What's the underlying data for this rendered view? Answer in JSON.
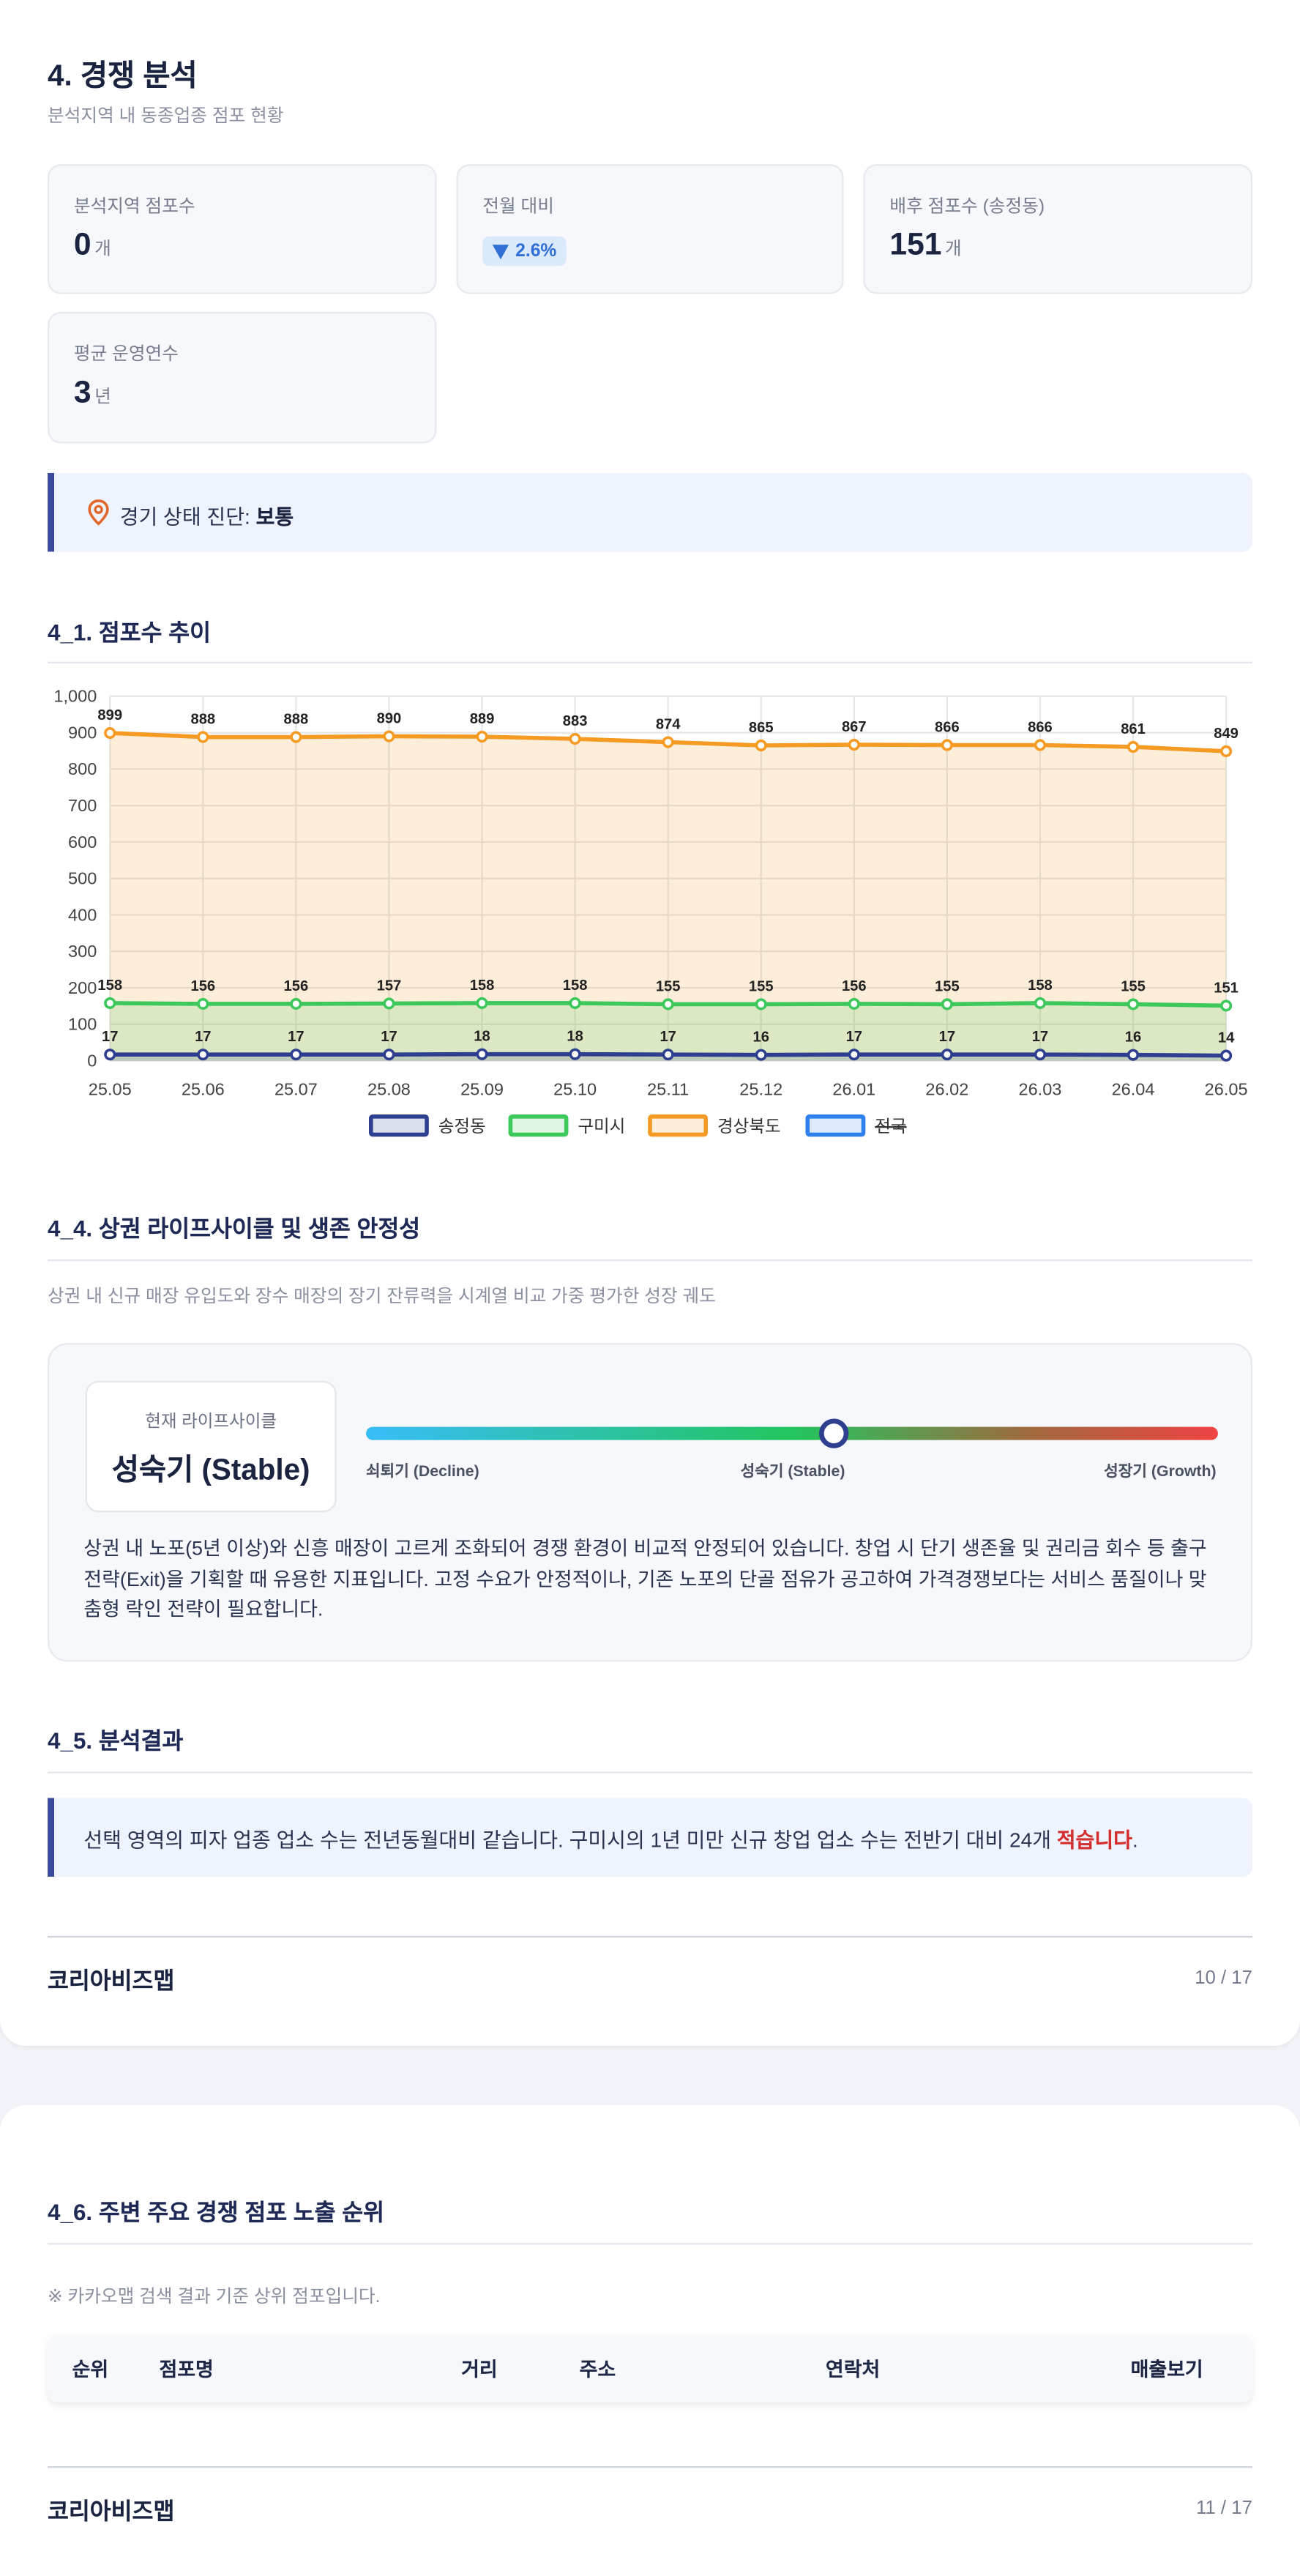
{
  "header": {
    "title": "4. 경쟁 분석",
    "subtitle": "분석지역 내 동종업종 점포 현황"
  },
  "stats": [
    {
      "label": "분석지역 점포수",
      "value": "0",
      "unit": "개"
    },
    {
      "label": "전월 대비",
      "value": "2.6%"
    },
    {
      "label": "배후 점포수 (송정동)",
      "value": "151",
      "unit": "개"
    },
    {
      "label": "평균 운영연수",
      "value": "3",
      "unit": "년"
    }
  ],
  "diagnosis": {
    "label": "경기 상태 진단:",
    "value": "보통"
  },
  "trend_section": {
    "title": "4_1. 점포수 추이"
  },
  "chart_data": {
    "type": "line",
    "categories": [
      "25.05",
      "25.06",
      "25.07",
      "25.08",
      "25.09",
      "25.10",
      "25.11",
      "25.12",
      "26.01",
      "26.02",
      "26.03",
      "26.04",
      "26.05"
    ],
    "series": [
      {
        "name": "송정동",
        "color": "#2e3f8f",
        "values": [
          17,
          17,
          17,
          17,
          18,
          18,
          17,
          16,
          17,
          17,
          17,
          16,
          14
        ]
      },
      {
        "name": "구미시",
        "color": "#3cc85a",
        "values": [
          158,
          156,
          156,
          157,
          158,
          158,
          155,
          155,
          156,
          155,
          158,
          155,
          151
        ]
      },
      {
        "name": "경상북도",
        "color": "#f59a23",
        "values": [
          899,
          888,
          888,
          890,
          889,
          883,
          874,
          865,
          867,
          866,
          866,
          861,
          849
        ]
      },
      {
        "name": "전국",
        "color": "#2f80ed",
        "hidden": true,
        "values": [
          null,
          null,
          null,
          null,
          null,
          null,
          null,
          null,
          null,
          null,
          null,
          null,
          null
        ]
      }
    ],
    "ylim": [
      0,
      1000
    ],
    "yticks": [
      0,
      100,
      200,
      300,
      400,
      500,
      600,
      700,
      800,
      900,
      {
        "value": 1000,
        "label": "1,000"
      }
    ],
    "grid": true,
    "area": true,
    "legend": "bottom"
  },
  "lifecycle": {
    "title": "4_4. 상권 라이프사이클 및 생존 안정성",
    "description": "상권 내 신규 매장 유입도와 장수 매장의 장기 잔류력을 시계열 비교 가중 평가한 성장 궤도",
    "current_label": "현재 라이프사이클",
    "current_value": "성숙기 (Stable)",
    "scale_labels": [
      "쇠퇴기 (Decline)",
      "성숙기 (Stable)",
      "성장기 (Growth)"
    ],
    "text": "상권 내 노포(5년 이상)와 신흥 매장이 고르게 조화되어 경쟁 환경이 비교적 안정되어 있습니다. 창업 시 단기 생존율 및 권리금 회수 등 출구 전략(Exit)을 기획할 때 유용한 지표입니다. 고정 수요가 안정적이나, 기존 노포의 단골 점유가 공고하여 가격경쟁보다는 서비스 품질이나 맞춤형 락인 전략이 필요합니다."
  },
  "result": {
    "title": "4_5. 분석결과",
    "text": "선택 영역의 피자 업종 업소 수는 전년동월대비 같습니다. 구미시의 1년 미만 신규 창업 업소 수는 전반기 대비 24개 ",
    "highlight": "적습니다",
    "end": "."
  },
  "footer1": {
    "brand": "코리아비즈맵",
    "page": "10 / 17"
  },
  "ranking": {
    "title": "4_6. 주변 주요 경쟁 점포 노출 순위",
    "note": "※ 카카오맵 검색 결과 기준 상위 점포입니다.",
    "table": {
      "headers": [
        "순위",
        "점포명",
        "거리",
        "주소",
        "연락처",
        "매출보기"
      ]
    }
  },
  "footer2": {
    "brand": "코리아비즈맵",
    "page": "11 / 17"
  }
}
